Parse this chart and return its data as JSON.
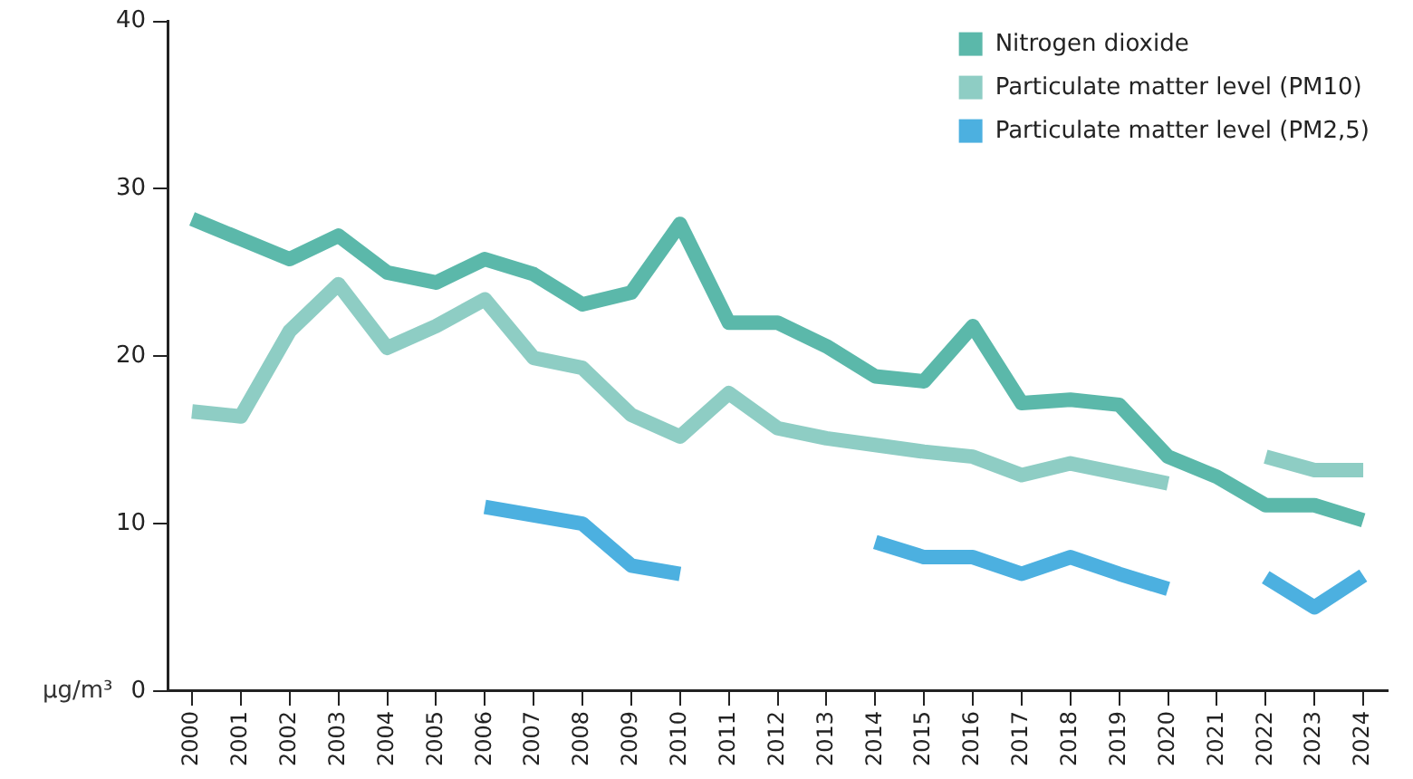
{
  "chart_data": {
    "type": "line",
    "ylabel": "µg/m³",
    "categories": [
      "2000",
      "2001",
      "2002",
      "2003",
      "2004",
      "2005",
      "2006",
      "2007",
      "2008",
      "2009",
      "2010",
      "2011",
      "2012",
      "2013",
      "2014",
      "2015",
      "2016",
      "2017",
      "2018",
      "2019",
      "2020",
      "2021",
      "2022",
      "2023",
      "2024"
    ],
    "series": [
      {
        "name": "Nitrogen dioxide",
        "color": "#5bb8aa",
        "values": [
          28.2,
          27,
          25.8,
          27.2,
          25,
          24.4,
          25.8,
          24.9,
          23.1,
          23.8,
          27.9,
          22,
          22,
          20.6,
          18.8,
          18.5,
          21.8,
          17.2,
          17.4,
          17.1,
          14,
          12.8,
          11.1,
          11.1,
          10.2
        ]
      },
      {
        "name": "Particulate matter level (PM10)",
        "color": "#8ecdc4",
        "values": [
          16.7,
          16.4,
          21.5,
          24.3,
          20.5,
          21.8,
          23.4,
          19.9,
          19.3,
          16.5,
          15.2,
          17.8,
          15.7,
          15.1,
          14.7,
          14.3,
          14,
          12.9,
          13.6,
          13,
          12.4,
          null,
          14,
          13.2,
          13.2
        ]
      },
      {
        "name": "Particulate matter level (PM2,5)",
        "color": "#4cb0e0",
        "values": [
          null,
          null,
          null,
          null,
          null,
          null,
          11,
          10.5,
          10,
          7.5,
          7,
          null,
          null,
          null,
          8.9,
          8,
          8,
          7,
          8,
          7,
          6.1,
          null,
          6.8,
          5,
          6.9
        ]
      }
    ],
    "ylim": [
      0,
      40
    ],
    "yticks": [
      0,
      10,
      20,
      30,
      40
    ],
    "grid": false,
    "legend": "top right",
    "marker": "none",
    "line_style": "solid"
  }
}
